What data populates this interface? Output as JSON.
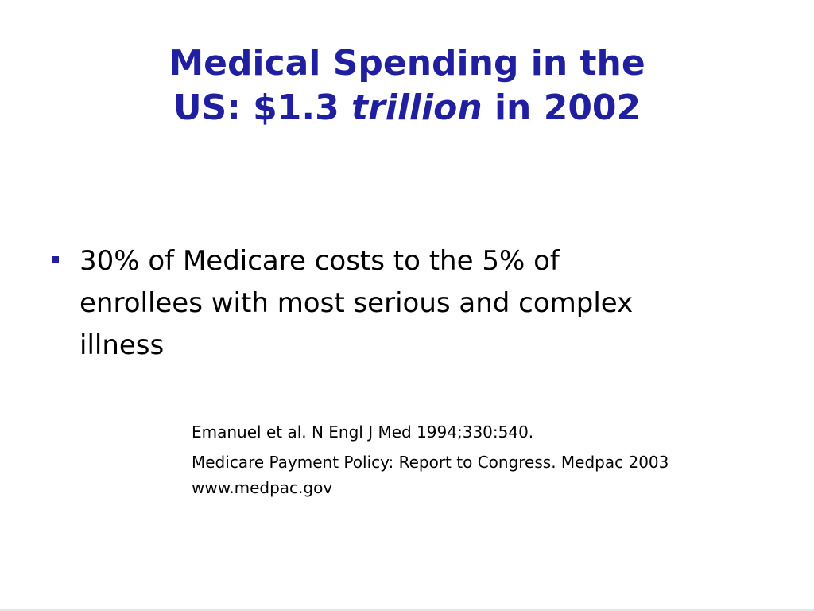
{
  "title": {
    "line1": "Medical Spending in the",
    "line2_prefix": "US: $1.3 ",
    "line2_emphasis": "trillion",
    "line2_suffix": " in 2002"
  },
  "bullets": [
    {
      "line1": "30% of Medicare costs to the 5% of",
      "line2": "enrollees with most serious and complex",
      "line3": "illness"
    }
  ],
  "references": {
    "ref1": "Emanuel et al. N Engl J Med 1994;330:540.",
    "ref2": "Medicare Payment Policy: Report to Congress.  Medpac 2003",
    "ref2_url": "www.medpac.gov"
  },
  "colors": {
    "title": "#1f1fa0",
    "bullet_marker": "#1f1fa0",
    "body_text": "#000000",
    "background": "#ffffff"
  }
}
